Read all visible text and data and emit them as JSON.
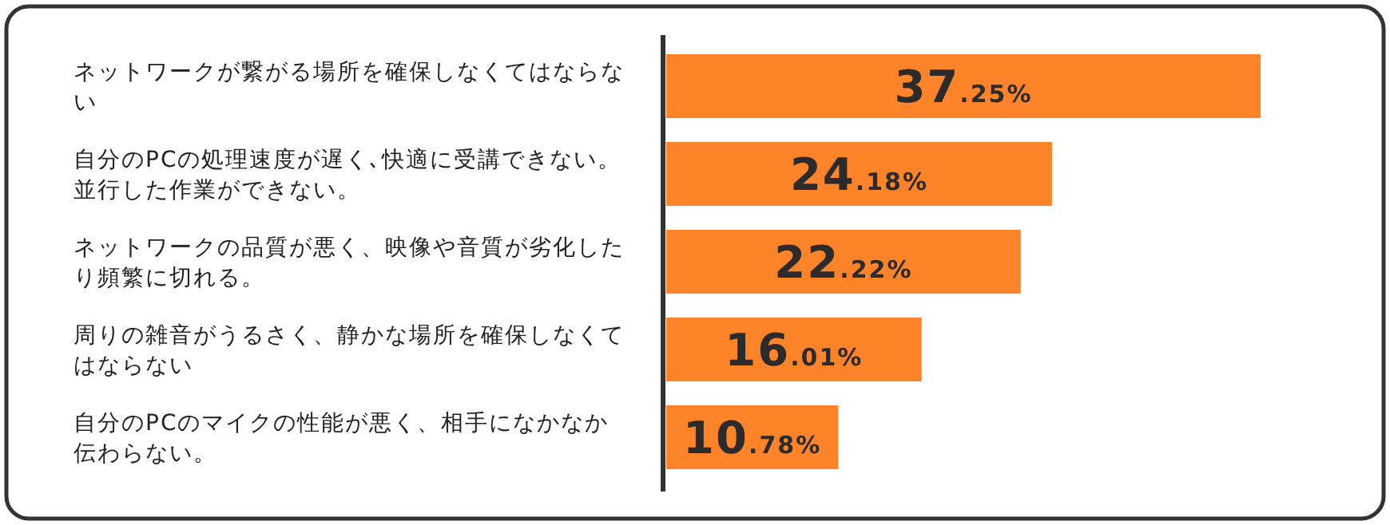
{
  "chart_data": {
    "type": "bar",
    "orientation": "horizontal",
    "color": "#ff8329",
    "categories": [
      "ネットワークが繋がる場所を確保しなくてはならない",
      "自分のPCの処理速度が遅く､快適に受講できない。並行した作業ができない。",
      "ネットワークの品質が悪く、映像や音質が劣化したり頻繁に切れる。",
      "周りの雑音がうるさく、静かな場所を確保しなくてはならない",
      "自分のPCのマイクの性能が悪く、相手になかなか伝わらない。"
    ],
    "values": [
      37.25,
      24.18,
      22.22,
      16.01,
      10.78
    ],
    "value_labels": [
      "37.25%",
      "24.18%",
      "22.22%",
      "16.01%",
      "10.78%"
    ]
  }
}
